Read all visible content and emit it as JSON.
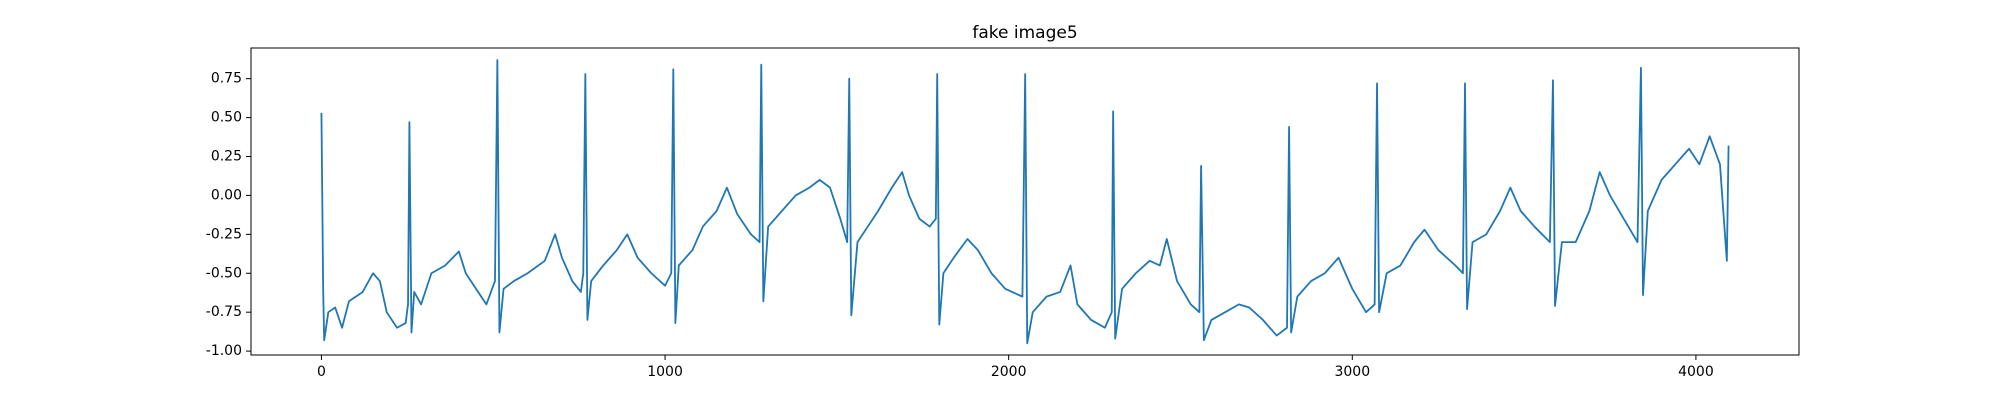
{
  "chart_data": {
    "type": "line",
    "title": "fake image5",
    "color": "#1f77b4",
    "x": [
      0,
      5,
      8,
      20,
      40,
      60,
      80,
      120,
      150,
      170,
      190,
      220,
      245,
      252,
      256,
      262,
      270,
      290,
      320,
      360,
      400,
      420,
      450,
      480,
      505,
      512,
      518,
      530,
      560,
      600,
      650,
      680,
      700,
      730,
      755,
      762,
      768,
      774,
      785,
      820,
      860,
      890,
      920,
      960,
      1000,
      1018,
      1024,
      1030,
      1040,
      1080,
      1110,
      1150,
      1180,
      1210,
      1250,
      1275,
      1280,
      1286,
      1300,
      1340,
      1380,
      1420,
      1450,
      1480,
      1510,
      1530,
      1536,
      1542,
      1560,
      1590,
      1620,
      1660,
      1690,
      1710,
      1740,
      1770,
      1788,
      1792,
      1798,
      1810,
      1840,
      1880,
      1910,
      1950,
      1990,
      2040,
      2048,
      2054,
      2070,
      2110,
      2150,
      2180,
      2200,
      2240,
      2280,
      2300,
      2304,
      2310,
      2330,
      2370,
      2410,
      2440,
      2460,
      2490,
      2530,
      2555,
      2560,
      2568,
      2590,
      2630,
      2670,
      2700,
      2740,
      2780,
      2810,
      2816,
      2822,
      2840,
      2880,
      2920,
      2960,
      3000,
      3040,
      3065,
      3072,
      3078,
      3100,
      3140,
      3180,
      3210,
      3250,
      3300,
      3322,
      3328,
      3334,
      3350,
      3390,
      3430,
      3460,
      3490,
      3530,
      3575,
      3584,
      3590,
      3610,
      3650,
      3690,
      3720,
      3750,
      3790,
      3830,
      3840,
      3846,
      3860,
      3900,
      3940,
      3980,
      4010,
      4040,
      4070,
      4090,
      4095
    ],
    "values": [
      0.53,
      -0.6,
      -0.93,
      -0.75,
      -0.72,
      -0.85,
      -0.68,
      -0.62,
      -0.5,
      -0.55,
      -0.75,
      -0.85,
      -0.82,
      -0.7,
      0.47,
      -0.88,
      -0.62,
      -0.7,
      -0.5,
      -0.45,
      -0.36,
      -0.5,
      -0.6,
      -0.7,
      -0.55,
      0.87,
      -0.88,
      -0.6,
      -0.55,
      -0.5,
      -0.42,
      -0.25,
      -0.4,
      -0.55,
      -0.62,
      -0.5,
      0.78,
      -0.8,
      -0.55,
      -0.45,
      -0.35,
      -0.25,
      -0.4,
      -0.5,
      -0.58,
      -0.5,
      0.81,
      -0.82,
      -0.45,
      -0.35,
      -0.2,
      -0.1,
      0.05,
      -0.12,
      -0.25,
      -0.3,
      0.84,
      -0.68,
      -0.2,
      -0.1,
      0.0,
      0.05,
      0.1,
      0.05,
      -0.15,
      -0.3,
      0.75,
      -0.77,
      -0.3,
      -0.2,
      -0.1,
      0.05,
      0.15,
      0.0,
      -0.15,
      -0.2,
      -0.15,
      0.78,
      -0.83,
      -0.5,
      -0.4,
      -0.28,
      -0.35,
      -0.5,
      -0.6,
      -0.65,
      0.78,
      -0.95,
      -0.75,
      -0.65,
      -0.62,
      -0.45,
      -0.7,
      -0.8,
      -0.85,
      -0.75,
      0.54,
      -0.92,
      -0.6,
      -0.5,
      -0.42,
      -0.45,
      -0.28,
      -0.55,
      -0.7,
      -0.75,
      0.19,
      -0.93,
      -0.8,
      -0.75,
      -0.7,
      -0.72,
      -0.8,
      -0.9,
      -0.85,
      0.44,
      -0.88,
      -0.65,
      -0.55,
      -0.5,
      -0.4,
      -0.6,
      -0.75,
      -0.7,
      0.72,
      -0.75,
      -0.5,
      -0.45,
      -0.3,
      -0.22,
      -0.35,
      -0.45,
      -0.5,
      0.72,
      -0.73,
      -0.3,
      -0.25,
      -0.1,
      0.05,
      -0.1,
      -0.2,
      -0.3,
      0.74,
      -0.71,
      -0.3,
      -0.3,
      -0.1,
      0.15,
      0.0,
      -0.15,
      -0.3,
      0.82,
      -0.64,
      -0.1,
      0.1,
      0.2,
      0.3,
      0.2,
      0.38,
      0.2,
      -0.42,
      0.32
    ],
    "xlim": [
      -205,
      4300
    ],
    "xticks": [
      0,
      1000,
      2000,
      3000,
      4000
    ],
    "ylim": [
      -1.025,
      0.947
    ],
    "yticks": [
      {
        "value": -1.0,
        "label": "-1.00"
      },
      -0.75,
      {
        "value": -0.5,
        "label": "-0.50"
      },
      -0.25,
      {
        "value": 0.0,
        "label": "0.00"
      },
      0.25,
      {
        "value": 0.5,
        "label": "0.50"
      },
      0.75
    ]
  }
}
